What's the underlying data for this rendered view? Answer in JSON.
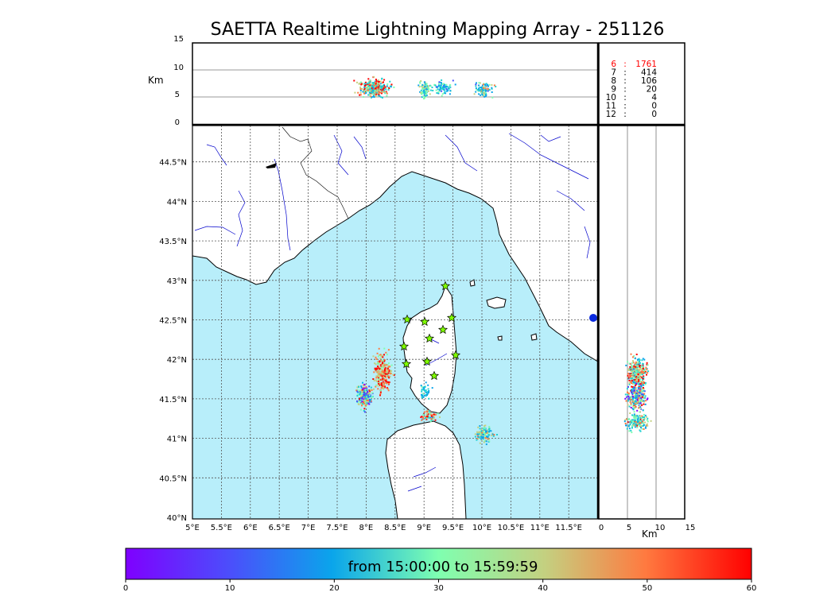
{
  "title": "SAETTA Realtime Lightning Mapping Array - 251126",
  "top_panel": {
    "unit": "Km",
    "y_ticks": [
      "15",
      "10",
      "5",
      "0"
    ]
  },
  "side_panel": {
    "unit": "Km",
    "x_ticks": [
      "0",
      "5",
      "10",
      "15"
    ]
  },
  "map": {
    "lon_ticks": [
      "5°E",
      "5.5°E",
      "6°E",
      "6.5°E",
      "7°E",
      "7.5°E",
      "8°E",
      "8.5°E",
      "9°E",
      "9.5°E",
      "10°E",
      "10.5°E",
      "11°E",
      "11.5°E"
    ],
    "lat_ticks": [
      "44.5°N",
      "44°N",
      "43.5°N",
      "43°N",
      "42.5°N",
      "42°N",
      "41.5°N",
      "41°N",
      "40.5°N",
      "40°N"
    ],
    "colors": {
      "sea": "#b8eefa",
      "land": "#ffffff",
      "river": "#0000cc",
      "station": "#7fff00"
    }
  },
  "station_counts": [
    {
      "stations": "6",
      "count": "1761"
    },
    {
      "stations": "7",
      "count": "414"
    },
    {
      "stations": "8",
      "count": "106"
    },
    {
      "stations": "9",
      "count": "20"
    },
    {
      "stations": "10",
      "count": "4"
    },
    {
      "stations": "11",
      "count": "0"
    },
    {
      "stations": "12",
      "count": "0"
    }
  ],
  "colorbar": {
    "label": "from 15:00:00 to 15:59:59",
    "ticks": [
      "0",
      "10",
      "20",
      "30",
      "40",
      "50",
      "60"
    ]
  }
}
